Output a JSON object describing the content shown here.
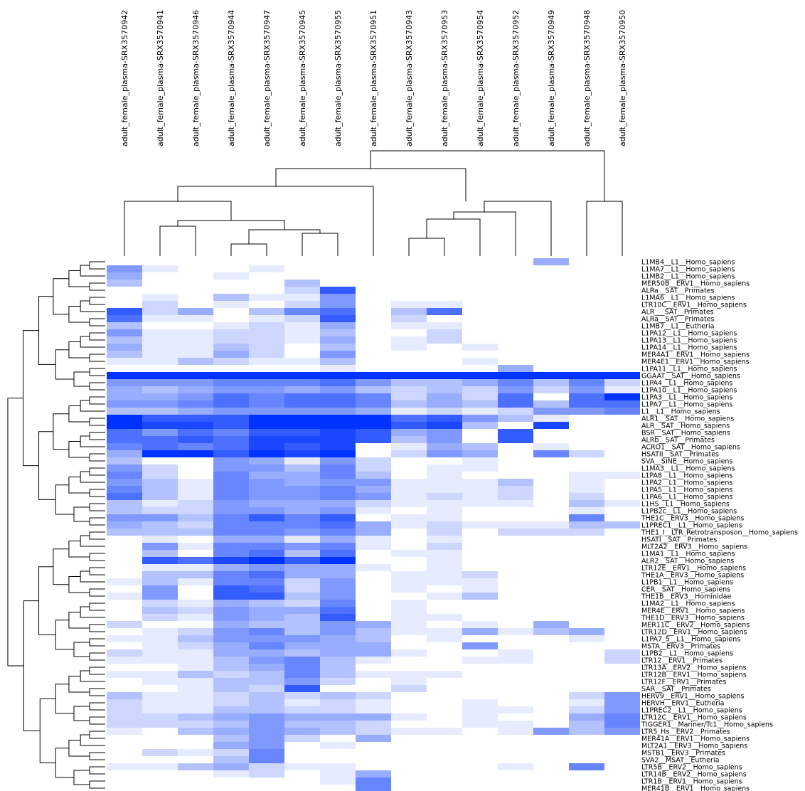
{
  "chart_data": {
    "type": "heatmap",
    "color": "#0033ff",
    "columns": [
      "adult_female_plasma-SRX3570942",
      "adult_female_plasma-SRX3570941",
      "adult_female_plasma-SRX3570946",
      "adult_female_plasma-SRX3570944",
      "adult_female_plasma-SRX3570947",
      "adult_female_plasma-SRX3570945",
      "adult_female_plasma-SRX3570955",
      "adult_female_plasma-SRX3570951",
      "adult_female_plasma-SRX3570943",
      "adult_female_plasma-SRX3570953",
      "adult_female_plasma-SRX3570954",
      "adult_female_plasma-SRX3570952",
      "adult_female_plasma-SRX3570949",
      "adult_female_plasma-SRX3570948",
      "adult_female_plasma-SRX3570950"
    ],
    "rows": [
      "L1MB4__L1__Homo_sapiens",
      "L1MA7__L1__Homo_sapiens",
      "L1MB2__L1__Homo_sapiens",
      "MER50B__ERV1__Homo_sapiens",
      "ALRa__SAT__Primates",
      "L1MA6__L1__Homo_sapiens",
      "LTR10C__ERV1__Homo_sapiens",
      "ALR___SAT__Primates",
      "ALRa__SAT__Primates",
      "L1MB7__L1__Eutheria",
      "L1PA12__L1__Homo_sapiens",
      "L1PA13__L1__Homo_sapiens",
      "L1PA14__L1__Homo_sapiens",
      "MER4A1__ERV1__Homo_sapiens",
      "MER4E1__ERV1__Homo_sapiens",
      "L1PA11__L1__Homo_sapiens",
      "GGAAT__SAT__Homo_sapiens",
      "L1PA4__L1__Homo_sapiens",
      "L1PA10__L1__Homo_sapiens",
      "L1PA3__L1__Homo_sapiens",
      "L1PA7__L1__Homo_sapiens",
      "L1__L1__Homo_sapiens",
      "ALR1__SAT__Homo_sapiens",
      "ALR__SAT__Homo_sapiens",
      "BSR__SAT__Homo_sapiens",
      "ALRb__SAT__Primates",
      "ACRO1__SAT__Homo_sapiens",
      "HSATII__SAT__Primates",
      "SVA__SINE__Homo_sapiens",
      "L1MA3__L1__Homo_sapiens",
      "L1PA8__L1__Homo_sapiens",
      "L1PA2__L1__Homo_sapiens",
      "L1PA5__L1__Homo_sapiens",
      "L1PA6__L1__Homo_sapiens",
      "L1HS__L1__Homo_sapiens",
      "L1PB2c__L1__Homo_sapiens",
      "THE1C__ERV3__Homo_sapiens",
      "L1PREC1__L1__Homo_sapiens",
      "THE1_I__LTR_Retrotransposon__Homo_sapiens",
      "HSATI__SAT__Primates",
      "MLT2A2__ERV3__Homo_sapiens",
      "L1MA1__L1__Homo_sapiens",
      "ALR2__SAT__Homo_sapiens",
      "LTR12E__ERV1__Homo_sapiens",
      "THE1A__ERV3__Homo_sapiens",
      "L1PB1__L1__Homo_sapiens",
      "CER__SAT__Homo_sapiens",
      "THE1B__ERV3__Hominidae",
      "L1MA2__L1__Homo_sapiens",
      "MER4E__ERV1__Homo_sapiens",
      "THE1D__ERV3__Homo_sapiens",
      "MER11C__ERV2__Homo_sapiens",
      "LTR12D__ERV1__Homo_sapiens",
      "L1PA7_5__L1__Homo_sapiens",
      "MSTA__ERV3__Primates",
      "L1PB2__L1__Homo_sapiens",
      "LTR12__ERV1__Primates",
      "LTR13A__ERV2__Homo_sapiens",
      "LTR12B__ERV1__Homo_sapiens",
      "LTR12F__ERV1__Primates",
      "SAR__SAT__Primates",
      "HERV9__ERV1__Homo_sapiens",
      "HERVH__ERV1__Eutheria",
      "L1PREC2__L1__Homo_sapiens",
      "LTR12C__ERV1__Homo_sapiens",
      "TIGGER1__Mariner/Tc1__Homo_sapiens",
      "LTR5_Hs__ERV2__Primates",
      "MER41A__ERV1__Homo_sapiens",
      "MLT2A1__ERV3__Homo_sapiens",
      "MSTB1__ERV3__Primates",
      "SVA2__MSAT__Eutheria",
      "LTR5B__ERV2__Homo_sapiens",
      "LTR14B__ERV2__Homo_sapiens",
      "LTR1B__ERV1__Homo_sapiens",
      "MER41B__ERV1__Homo_sapiens"
    ],
    "values": [
      [
        0,
        0,
        0,
        0,
        0,
        0,
        0,
        0,
        0,
        0,
        0,
        0,
        4,
        0,
        0
      ],
      [
        5,
        1,
        0,
        0,
        1,
        0,
        0,
        0,
        0,
        0,
        0,
        0,
        0,
        0,
        0
      ],
      [
        4,
        0,
        0,
        1,
        0,
        0,
        0,
        0,
        0,
        0,
        0,
        0,
        0,
        0,
        0
      ],
      [
        3,
        0,
        0,
        0,
        0,
        3,
        0,
        0,
        0,
        0,
        0,
        0,
        0,
        0,
        0
      ],
      [
        0,
        0,
        0,
        0,
        0,
        2,
        8,
        0,
        0,
        0,
        0,
        0,
        0,
        0,
        0
      ],
      [
        0,
        1,
        0,
        3,
        1,
        1,
        5,
        0,
        0,
        0,
        0,
        0,
        0,
        0,
        0
      ],
      [
        0,
        2,
        0,
        1,
        0,
        2,
        5,
        0,
        1,
        1,
        0,
        0,
        0,
        0,
        0
      ],
      [
        8,
        2,
        4,
        0,
        3,
        6,
        7,
        0,
        3,
        7,
        0,
        0,
        0,
        0,
        0
      ],
      [
        7,
        1,
        1,
        0,
        1,
        2,
        8,
        0,
        2,
        0,
        0,
        0,
        0,
        0,
        0
      ],
      [
        3,
        0,
        0,
        1,
        2,
        1,
        4,
        0,
        1,
        1,
        0,
        0,
        0,
        0,
        0
      ],
      [
        5,
        1,
        1,
        2,
        2,
        1,
        3,
        0,
        0,
        2,
        0,
        0,
        0,
        0,
        0
      ],
      [
        3,
        1,
        1,
        2,
        2,
        1,
        4,
        0,
        1,
        2,
        0,
        0,
        0,
        0,
        0
      ],
      [
        4,
        1,
        1,
        3,
        2,
        0,
        3,
        0,
        1,
        0,
        1,
        0,
        0,
        0,
        0
      ],
      [
        3,
        1,
        1,
        4,
        2,
        0,
        5,
        0,
        0,
        0,
        0,
        0,
        0,
        0,
        0
      ],
      [
        1,
        1,
        3,
        2,
        1,
        1,
        3,
        0,
        0,
        0,
        1,
        0,
        0,
        0,
        0
      ],
      [
        0,
        0,
        0,
        0,
        0,
        0,
        1,
        0,
        0,
        0,
        0,
        4,
        0,
        0,
        0
      ],
      [
        10,
        10,
        10,
        10,
        10,
        10,
        10,
        10,
        10,
        10,
        10,
        10,
        10,
        10,
        10
      ],
      [
        5,
        5,
        5,
        6,
        6,
        6,
        7,
        5,
        3,
        3,
        4,
        6,
        3,
        6,
        2
      ],
      [
        4,
        3,
        4,
        5,
        5,
        4,
        5,
        3,
        2,
        3,
        2,
        5,
        2,
        5,
        1
      ],
      [
        4,
        4,
        5,
        7,
        6,
        7,
        7,
        6,
        2,
        4,
        2,
        7,
        0,
        7,
        10
      ],
      [
        5,
        5,
        6,
        7,
        6,
        7,
        7,
        6,
        3,
        4,
        3,
        7,
        3,
        7,
        7
      ],
      [
        3,
        3,
        4,
        5,
        5,
        5,
        5,
        4,
        1,
        2,
        1,
        2,
        5,
        5,
        6
      ],
      [
        10,
        8,
        8,
        8,
        10,
        10,
        10,
        10,
        7,
        8,
        5,
        3,
        1,
        0,
        0
      ],
      [
        10,
        9,
        9,
        8,
        10,
        10,
        10,
        10,
        8,
        9,
        3,
        0,
        9,
        0,
        0
      ],
      [
        7,
        5,
        7,
        6,
        8,
        8,
        9,
        8,
        4,
        5,
        0,
        8,
        0,
        0,
        0
      ],
      [
        7,
        7,
        8,
        7,
        9,
        9,
        9,
        8,
        3,
        5,
        0,
        8,
        0,
        0,
        0
      ],
      [
        6,
        7,
        6,
        7,
        9,
        8,
        9,
        0,
        1,
        4,
        3,
        0,
        1,
        0,
        0
      ],
      [
        4,
        10,
        10,
        8,
        10,
        9,
        10,
        0,
        2,
        5,
        4,
        0,
        6,
        2,
        0
      ],
      [
        3,
        0,
        0,
        5,
        4,
        1,
        5,
        2,
        0,
        0,
        1,
        0,
        0,
        0,
        0
      ],
      [
        5,
        2,
        0,
        5,
        5,
        3,
        6,
        2,
        0,
        1,
        1,
        0,
        0,
        0,
        0
      ],
      [
        6,
        2,
        0,
        6,
        4,
        4,
        6,
        3,
        0,
        1,
        0,
        0,
        0,
        1,
        1
      ],
      [
        5,
        3,
        1,
        6,
        5,
        4,
        5,
        5,
        1,
        1,
        1,
        3,
        0,
        1,
        0
      ],
      [
        6,
        3,
        1,
        6,
        5,
        5,
        6,
        4,
        1,
        1,
        1,
        2,
        0,
        1,
        0
      ],
      [
        7,
        3,
        1,
        6,
        5,
        5,
        6,
        5,
        1,
        2,
        1,
        2,
        0,
        2,
        0
      ],
      [
        3,
        1,
        2,
        5,
        4,
        4,
        4,
        2,
        1,
        1,
        1,
        1,
        0,
        3,
        1
      ],
      [
        3,
        2,
        2,
        5,
        5,
        4,
        5,
        1,
        0,
        1,
        0,
        0,
        0,
        1,
        0
      ],
      [
        5,
        5,
        3,
        6,
        8,
        6,
        8,
        0,
        1,
        1,
        0,
        0,
        0,
        6,
        0
      ],
      [
        4,
        3,
        2,
        6,
        6,
        6,
        7,
        4,
        1,
        2,
        1,
        1,
        1,
        3,
        3
      ],
      [
        3,
        3,
        3,
        6,
        6,
        5,
        6,
        4,
        0,
        2,
        0,
        2,
        2,
        2,
        0
      ],
      [
        0,
        1,
        0,
        4,
        4,
        1,
        4,
        1,
        0,
        1,
        0,
        0,
        0,
        0,
        0
      ],
      [
        0,
        5,
        1,
        6,
        6,
        5,
        6,
        1,
        0,
        2,
        0,
        0,
        0,
        0,
        0
      ],
      [
        0,
        3,
        0,
        6,
        7,
        3,
        7,
        0,
        1,
        1,
        0,
        0,
        0,
        0,
        0
      ],
      [
        0,
        8,
        7,
        9,
        10,
        8,
        10,
        0,
        0,
        1,
        0,
        0,
        0,
        0,
        0
      ],
      [
        0,
        1,
        1,
        4,
        5,
        4,
        4,
        1,
        0,
        1,
        0,
        0,
        0,
        0,
        0
      ],
      [
        0,
        3,
        3,
        6,
        7,
        4,
        4,
        0,
        1,
        1,
        2,
        0,
        0,
        0,
        0
      ],
      [
        1,
        3,
        1,
        6,
        6,
        2,
        5,
        0,
        1,
        1,
        1,
        0,
        0,
        0,
        0
      ],
      [
        0,
        5,
        0,
        8,
        7,
        2,
        5,
        0,
        1,
        0,
        1,
        0,
        0,
        0,
        0
      ],
      [
        1,
        5,
        0,
        8,
        8,
        3,
        5,
        0,
        0,
        1,
        3,
        0,
        0,
        0,
        0
      ],
      [
        0,
        2,
        1,
        4,
        3,
        2,
        6,
        0,
        1,
        0,
        0,
        0,
        0,
        0,
        0
      ],
      [
        0,
        3,
        2,
        5,
        4,
        4,
        7,
        0,
        1,
        0,
        0,
        0,
        0,
        0,
        0
      ],
      [
        0,
        2,
        1,
        5,
        4,
        3,
        8,
        0,
        1,
        1,
        0,
        0,
        0,
        0,
        0
      ],
      [
        2,
        0,
        0,
        4,
        3,
        3,
        5,
        4,
        1,
        0,
        1,
        0,
        4,
        0,
        0
      ],
      [
        0,
        1,
        2,
        5,
        6,
        3,
        5,
        3,
        1,
        1,
        4,
        1,
        3,
        4,
        0
      ],
      [
        1,
        1,
        3,
        5,
        5,
        5,
        4,
        3,
        0,
        1,
        0,
        0,
        0,
        1,
        0
      ],
      [
        0,
        1,
        2,
        4,
        6,
        4,
        4,
        4,
        0,
        0,
        5,
        0,
        0,
        0,
        0
      ],
      [
        2,
        1,
        1,
        4,
        4,
        3,
        4,
        4,
        1,
        0,
        0,
        1,
        0,
        0,
        2
      ],
      [
        1,
        1,
        1,
        3,
        5,
        6,
        3,
        1,
        0,
        0,
        1,
        1,
        0,
        0,
        2
      ],
      [
        0,
        0,
        1,
        3,
        4,
        6,
        3,
        0,
        0,
        0,
        0,
        0,
        0,
        0,
        0
      ],
      [
        1,
        1,
        3,
        2,
        3,
        6,
        3,
        1,
        1,
        1,
        0,
        0,
        0,
        0,
        0
      ],
      [
        0,
        1,
        1,
        3,
        3,
        5,
        2,
        0,
        1,
        0,
        0,
        0,
        0,
        0,
        0
      ],
      [
        0,
        0,
        1,
        3,
        2,
        8,
        0,
        0,
        2,
        0,
        0,
        0,
        0,
        0,
        0
      ],
      [
        3,
        1,
        1,
        2,
        3,
        2,
        3,
        2,
        0,
        0,
        0,
        0,
        0,
        2,
        5
      ],
      [
        2,
        1,
        1,
        2,
        3,
        1,
        2,
        1,
        0,
        0,
        1,
        0,
        0,
        1,
        5
      ],
      [
        2,
        1,
        1,
        3,
        3,
        2,
        2,
        1,
        0,
        0,
        1,
        1,
        0,
        2,
        5
      ],
      [
        2,
        2,
        3,
        4,
        5,
        4,
        4,
        4,
        1,
        0,
        1,
        0,
        0,
        4,
        6
      ],
      [
        2,
        2,
        2,
        3,
        5,
        3,
        3,
        2,
        0,
        0,
        1,
        1,
        0,
        3,
        6
      ],
      [
        1,
        0,
        3,
        4,
        5,
        4,
        3,
        2,
        1,
        1,
        0,
        1,
        5,
        3,
        5
      ],
      [
        0,
        0,
        0,
        3,
        5,
        2,
        0,
        4,
        0,
        0,
        0,
        0,
        0,
        0,
        0
      ],
      [
        0,
        0,
        0,
        4,
        5,
        0,
        1,
        0,
        0,
        0,
        0,
        0,
        0,
        0,
        0
      ],
      [
        0,
        2,
        1,
        2,
        6,
        0,
        0,
        0,
        0,
        0,
        0,
        0,
        0,
        0,
        0
      ],
      [
        0,
        0,
        0,
        3,
        6,
        0,
        0,
        0,
        0,
        0,
        0,
        0,
        0,
        0,
        0
      ],
      [
        1,
        1,
        3,
        4,
        2,
        1,
        1,
        0,
        0,
        0,
        0,
        1,
        0,
        6,
        0
      ],
      [
        0,
        0,
        0,
        1,
        2,
        0,
        1,
        4,
        0,
        0,
        0,
        0,
        0,
        0,
        0
      ],
      [
        0,
        0,
        0,
        0,
        0,
        0,
        1,
        6,
        0,
        0,
        0,
        0,
        0,
        0,
        0
      ],
      [
        0,
        0,
        0,
        0,
        0,
        0,
        0,
        6,
        0,
        0,
        0,
        0,
        0,
        0,
        0
      ]
    ]
  }
}
